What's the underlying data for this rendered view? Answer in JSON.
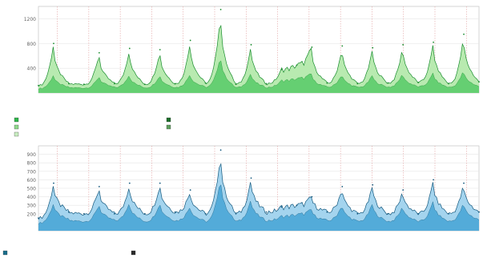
{
  "charts": {
    "top": {
      "ylabel": "",
      "date_range": "",
      "legend": [
        {
          "marker": "#2eb64a",
          "text": ""
        },
        {
          "marker": "#8fd88c",
          "text": ""
        },
        {
          "marker": "#c8edc0",
          "text": ""
        },
        {
          "marker": "#1c6e2a",
          "text": ""
        },
        {
          "marker": "#5f9f5f",
          "text": ""
        }
      ]
    },
    "bottom": {
      "ylabel": "",
      "date_range": "",
      "legend": [
        {
          "marker": "#1a6e8c",
          "text": ""
        },
        {
          "marker": "#2b2b2b",
          "text": ""
        }
      ]
    }
  },
  "colors": {
    "top_fill": "#5ccc6c",
    "top_line": "#178c2c",
    "top_light": "#b8eab0",
    "bottom_fill": "#4aa6d6",
    "bottom_line": "#13587e",
    "bottom_light": "#a4d4ee",
    "grid_major": "#e2a0a0",
    "grid_minor": "#e6e6e6"
  },
  "chart_data": [
    {
      "type": "area",
      "title": "",
      "xlabel": "",
      "ylabel": "",
      "ylim": [
        0,
        1400
      ],
      "yticks": [
        400,
        800,
        1200
      ],
      "x_count": 30,
      "x_tick_labels": [
        "",
        "",
        "",
        "",
        "",
        "",
        "",
        "",
        "",
        "",
        "",
        "",
        "",
        ""
      ],
      "series": [
        {
          "name": "",
          "values": [
            120,
            800,
            150,
            140,
            650,
            150,
            720,
            140,
            700,
            150,
            850,
            160,
            1350,
            140,
            780,
            150,
            380,
            450,
            740,
            160,
            760,
            150,
            730,
            160,
            780,
            170,
            820,
            150,
            950,
            180
          ]
        },
        {
          "name": "",
          "values": [
            70,
            300,
            90,
            80,
            280,
            90,
            310,
            85,
            300,
            90,
            320,
            95,
            640,
            85,
            330,
            90,
            200,
            230,
            310,
            95,
            320,
            90,
            300,
            95,
            330,
            100,
            340,
            90,
            380,
            105
          ]
        }
      ]
    },
    {
      "type": "area",
      "title": "",
      "xlabel": "",
      "ylabel": "",
      "ylim": [
        0,
        1000
      ],
      "yticks": [
        200,
        300,
        400,
        500,
        600,
        700,
        800,
        900
      ],
      "x_count": 30,
      "x_tick_labels": [
        "",
        "",
        "",
        "",
        "",
        "",
        "",
        "",
        "",
        "",
        "",
        "",
        "",
        ""
      ],
      "series": [
        {
          "name": "",
          "values": [
            150,
            560,
            220,
            200,
            520,
            200,
            560,
            200,
            560,
            220,
            480,
            200,
            950,
            200,
            620,
            220,
            280,
            300,
            400,
            220,
            520,
            200,
            540,
            200,
            480,
            200,
            600,
            200,
            560,
            220
          ]
        },
        {
          "name": "",
          "values": [
            90,
            330,
            130,
            110,
            320,
            120,
            350,
            110,
            340,
            120,
            300,
            110,
            660,
            110,
            380,
            120,
            170,
            190,
            250,
            120,
            320,
            110,
            330,
            110,
            300,
            110,
            360,
            110,
            340,
            130
          ]
        }
      ]
    }
  ]
}
